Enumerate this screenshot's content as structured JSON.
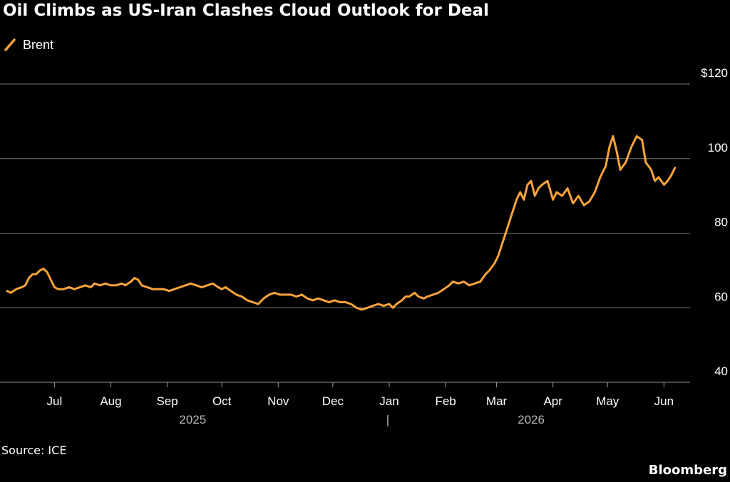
{
  "header": {
    "title": "Oil Climbs as US-Iran Clashes Cloud Outlook for Deal"
  },
  "footer": {
    "source": "Source: ICE",
    "brand": "Bloomberg"
  },
  "colors": {
    "background": "#000000",
    "series": "#f7a33b",
    "grid": "#808080",
    "text": "#ffffff"
  },
  "chart_data": {
    "type": "line",
    "title": "Oil Climbs as US-Iran Clashes Cloud Outlook for Deal",
    "xlabel": "",
    "ylabel": "",
    "ylim": [
      40,
      120
    ],
    "y_ticks": [
      {
        "value": 120,
        "label": "$120"
      },
      {
        "value": 100,
        "label": "100"
      },
      {
        "value": 80,
        "label": "80"
      },
      {
        "value": 60,
        "label": "60"
      },
      {
        "value": 40,
        "label": "40"
      }
    ],
    "x_range": [
      "2025-06-05",
      "2026-06-13"
    ],
    "x_ticks": [
      {
        "date": "2025-07-01",
        "label": "Jul"
      },
      {
        "date": "2025-08-01",
        "label": "Aug"
      },
      {
        "date": "2025-09-01",
        "label": "Sep"
      },
      {
        "date": "2025-10-01",
        "label": "Oct"
      },
      {
        "date": "2025-11-01",
        "label": "Nov"
      },
      {
        "date": "2025-12-01",
        "label": "Dec"
      },
      {
        "date": "2026-01-01",
        "label": "Jan"
      },
      {
        "date": "2026-02-01",
        "label": "Feb"
      },
      {
        "date": "2026-03-01",
        "label": "Mar"
      },
      {
        "date": "2026-04-01",
        "label": "Apr"
      },
      {
        "date": "2026-05-01",
        "label": "May"
      },
      {
        "date": "2026-06-01",
        "label": "Jun"
      }
    ],
    "year_labels": [
      {
        "date": "2025-09-15",
        "label": "2025"
      },
      {
        "date": "2026-03-20",
        "label": "2026"
      }
    ],
    "year_divider": {
      "date": "2026-01-01",
      "label": "|"
    },
    "grid": true,
    "legend": "top-left",
    "series": [
      {
        "name": "Brent",
        "color": "#f7a33b",
        "points": [
          [
            "2025-06-05",
            64.5
          ],
          [
            "2025-06-07",
            64.0
          ],
          [
            "2025-06-10",
            65.0
          ],
          [
            "2025-06-13",
            65.5
          ],
          [
            "2025-06-15",
            66.0
          ],
          [
            "2025-06-17",
            68.0
          ],
          [
            "2025-06-19",
            69.0
          ],
          [
            "2025-06-21",
            69.0
          ],
          [
            "2025-06-23",
            70.0
          ],
          [
            "2025-06-25",
            70.5
          ],
          [
            "2025-06-27",
            69.5
          ],
          [
            "2025-06-29",
            67.5
          ],
          [
            "2025-07-01",
            65.5
          ],
          [
            "2025-07-03",
            65.0
          ],
          [
            "2025-07-06",
            65.0
          ],
          [
            "2025-07-09",
            65.5
          ],
          [
            "2025-07-12",
            65.0
          ],
          [
            "2025-07-15",
            65.5
          ],
          [
            "2025-07-18",
            66.0
          ],
          [
            "2025-07-21",
            65.5
          ],
          [
            "2025-07-23",
            66.5
          ],
          [
            "2025-07-26",
            66.0
          ],
          [
            "2025-07-29",
            66.5
          ],
          [
            "2025-08-01",
            66.0
          ],
          [
            "2025-08-04",
            66.0
          ],
          [
            "2025-08-07",
            66.5
          ],
          [
            "2025-08-09",
            66.0
          ],
          [
            "2025-08-12",
            67.0
          ],
          [
            "2025-08-14",
            68.0
          ],
          [
            "2025-08-16",
            67.5
          ],
          [
            "2025-08-18",
            66.0
          ],
          [
            "2025-08-21",
            65.5
          ],
          [
            "2025-08-24",
            65.0
          ],
          [
            "2025-08-27",
            65.0
          ],
          [
            "2025-08-30",
            65.0
          ],
          [
            "2025-09-02",
            64.5
          ],
          [
            "2025-09-05",
            65.0
          ],
          [
            "2025-09-08",
            65.5
          ],
          [
            "2025-09-11",
            66.0
          ],
          [
            "2025-09-14",
            66.5
          ],
          [
            "2025-09-17",
            66.0
          ],
          [
            "2025-09-20",
            65.5
          ],
          [
            "2025-09-23",
            66.0
          ],
          [
            "2025-09-26",
            66.5
          ],
          [
            "2025-09-29",
            65.5
          ],
          [
            "2025-10-01",
            65.0
          ],
          [
            "2025-10-03",
            65.5
          ],
          [
            "2025-10-06",
            64.5
          ],
          [
            "2025-10-09",
            63.5
          ],
          [
            "2025-10-12",
            63.0
          ],
          [
            "2025-10-15",
            62.0
          ],
          [
            "2025-10-18",
            61.5
          ],
          [
            "2025-10-21",
            61.0
          ],
          [
            "2025-10-24",
            62.5
          ],
          [
            "2025-10-27",
            63.5
          ],
          [
            "2025-10-30",
            64.0
          ],
          [
            "2025-11-02",
            63.5
          ],
          [
            "2025-11-05",
            63.5
          ],
          [
            "2025-11-08",
            63.5
          ],
          [
            "2025-11-11",
            63.0
          ],
          [
            "2025-11-14",
            63.5
          ],
          [
            "2025-11-17",
            62.5
          ],
          [
            "2025-11-20",
            62.0
          ],
          [
            "2025-11-23",
            62.5
          ],
          [
            "2025-11-26",
            62.0
          ],
          [
            "2025-11-29",
            61.5
          ],
          [
            "2025-12-02",
            62.0
          ],
          [
            "2025-12-05",
            61.5
          ],
          [
            "2025-12-08",
            61.5
          ],
          [
            "2025-12-11",
            61.0
          ],
          [
            "2025-12-14",
            60.0
          ],
          [
            "2025-12-17",
            59.5
          ],
          [
            "2025-12-20",
            60.0
          ],
          [
            "2025-12-23",
            60.5
          ],
          [
            "2025-12-26",
            61.0
          ],
          [
            "2025-12-29",
            60.5
          ],
          [
            "2026-01-01",
            61.0
          ],
          [
            "2026-01-03",
            60.0
          ],
          [
            "2026-01-05",
            61.0
          ],
          [
            "2026-01-08",
            62.0
          ],
          [
            "2026-01-10",
            63.0
          ],
          [
            "2026-01-12",
            63.0
          ],
          [
            "2026-01-15",
            64.0
          ],
          [
            "2026-01-17",
            63.0
          ],
          [
            "2026-01-20",
            62.5
          ],
          [
            "2026-01-22",
            63.0
          ],
          [
            "2026-01-25",
            63.5
          ],
          [
            "2026-01-28",
            64.0
          ],
          [
            "2026-01-31",
            65.0
          ],
          [
            "2026-02-03",
            66.0
          ],
          [
            "2026-02-05",
            67.0
          ],
          [
            "2026-02-08",
            66.5
          ],
          [
            "2026-02-11",
            67.0
          ],
          [
            "2026-02-14",
            66.0
          ],
          [
            "2026-02-17",
            66.5
          ],
          [
            "2026-02-20",
            67.0
          ],
          [
            "2026-02-23",
            69.0
          ],
          [
            "2026-02-25",
            70.0
          ],
          [
            "2026-02-28",
            72.0
          ],
          [
            "2026-03-02",
            74.0
          ],
          [
            "2026-03-04",
            77.0
          ],
          [
            "2026-03-06",
            80.0
          ],
          [
            "2026-03-08",
            83.0
          ],
          [
            "2026-03-10",
            86.0
          ],
          [
            "2026-03-12",
            89.0
          ],
          [
            "2026-03-14",
            91.0
          ],
          [
            "2026-03-16",
            89.0
          ],
          [
            "2026-03-18",
            93.0
          ],
          [
            "2026-03-20",
            94.0
          ],
          [
            "2026-03-22",
            90.0
          ],
          [
            "2026-03-24",
            92.0
          ],
          [
            "2026-03-26",
            93.0
          ],
          [
            "2026-03-29",
            94.0
          ],
          [
            "2026-04-01",
            89.0
          ],
          [
            "2026-04-03",
            91.0
          ],
          [
            "2026-04-06",
            90.0
          ],
          [
            "2026-04-09",
            92.0
          ],
          [
            "2026-04-12",
            88.0
          ],
          [
            "2026-04-15",
            90.0
          ],
          [
            "2026-04-18",
            87.5
          ],
          [
            "2026-04-21",
            88.5
          ],
          [
            "2026-04-24",
            91.0
          ],
          [
            "2026-04-27",
            95.0
          ],
          [
            "2026-04-30",
            98.0
          ],
          [
            "2026-05-02",
            103.0
          ],
          [
            "2026-05-04",
            106.0
          ],
          [
            "2026-05-06",
            102.0
          ],
          [
            "2026-05-08",
            97.0
          ],
          [
            "2026-05-11",
            99.0
          ],
          [
            "2026-05-14",
            103.0
          ],
          [
            "2026-05-17",
            106.0
          ],
          [
            "2026-05-20",
            105.0
          ],
          [
            "2026-05-22",
            99.0
          ],
          [
            "2026-05-25",
            97.0
          ],
          [
            "2026-05-27",
            94.0
          ],
          [
            "2026-05-29",
            95.0
          ],
          [
            "2026-06-01",
            93.0
          ],
          [
            "2026-06-03",
            94.0
          ],
          [
            "2026-06-05",
            95.5
          ],
          [
            "2026-06-07",
            97.5
          ]
        ]
      }
    ]
  }
}
